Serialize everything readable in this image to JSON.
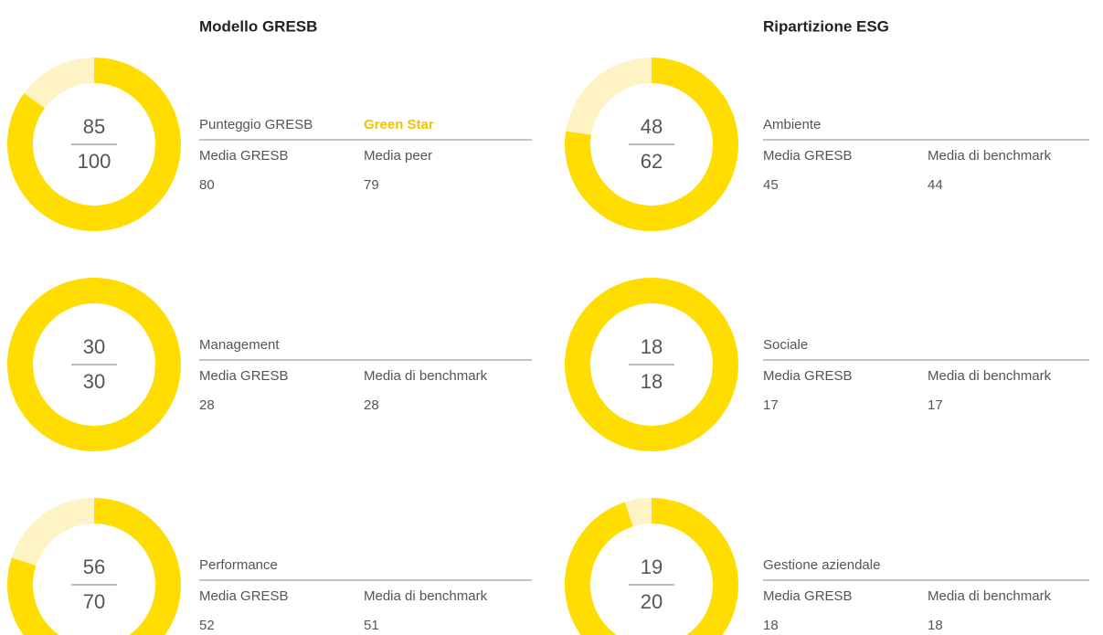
{
  "panels": [
    {
      "title": "Modello GRESB",
      "items": [
        {
          "score": 85,
          "max": 100,
          "label": "Punteggio GRESB",
          "badge": "Green Star",
          "metrics": [
            {
              "name": "Media GRESB",
              "value": 80
            },
            {
              "name": "Media peer",
              "value": 79
            }
          ]
        },
        {
          "score": 30,
          "max": 30,
          "label": "Management",
          "metrics": [
            {
              "name": "Media GRESB",
              "value": 28
            },
            {
              "name": "Media di benchmark",
              "value": 28
            }
          ]
        },
        {
          "score": 56,
          "max": 70,
          "label": "Performance",
          "metrics": [
            {
              "name": "Media GRESB",
              "value": 52
            },
            {
              "name": "Media di benchmark",
              "value": 51
            }
          ]
        }
      ]
    },
    {
      "title": "Ripartizione ESG",
      "items": [
        {
          "score": 48,
          "max": 62,
          "label": "Ambiente",
          "metrics": [
            {
              "name": "Media GRESB",
              "value": 45
            },
            {
              "name": "Media di benchmark",
              "value": 44
            }
          ]
        },
        {
          "score": 18,
          "max": 18,
          "label": "Sociale",
          "metrics": [
            {
              "name": "Media GRESB",
              "value": 17
            },
            {
              "name": "Media di benchmark",
              "value": 17
            }
          ]
        },
        {
          "score": 19,
          "max": 20,
          "label": "Gestione aziendale",
          "metrics": [
            {
              "name": "Media GRESB",
              "value": 18
            },
            {
              "name": "Media di benchmark",
              "value": 18
            }
          ]
        }
      ]
    }
  ]
}
